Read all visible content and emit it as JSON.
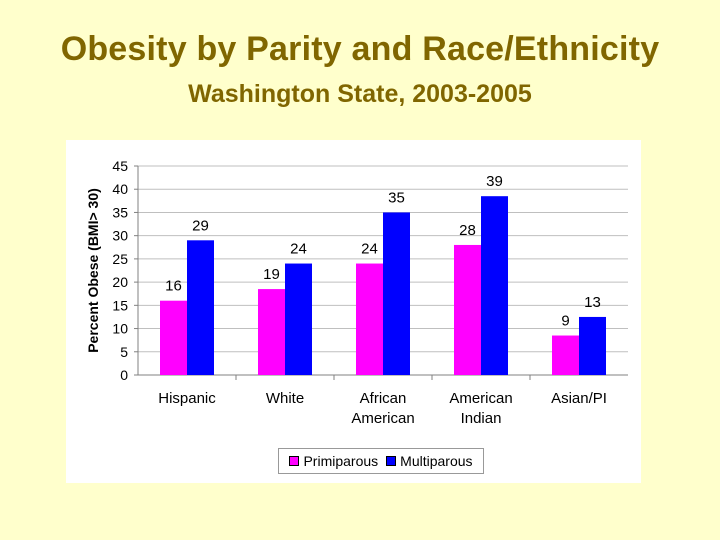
{
  "slide": {
    "title": "Obesity by Parity and Race/Ethnicity",
    "subtitle": "Washington State, 2003-2005"
  },
  "chart_data": {
    "type": "bar",
    "title": "",
    "xlabel": "",
    "ylabel": "Percent Obese (BMI> 30)",
    "ylim": [
      0,
      45
    ],
    "yticks": [
      0,
      5,
      10,
      15,
      20,
      25,
      30,
      35,
      40,
      45
    ],
    "grid": true,
    "legend_position": "bottom",
    "categories": [
      [
        "Hispanic"
      ],
      [
        "White"
      ],
      [
        "African",
        "American"
      ],
      [
        "American",
        "Indian"
      ],
      [
        "Asian/PI"
      ]
    ],
    "series": [
      {
        "name": "Primiparous",
        "color": "#FF00FF",
        "values": [
          16,
          18.5,
          24,
          28,
          8.5
        ],
        "labels": [
          "16",
          "19",
          "24",
          "28",
          "9"
        ]
      },
      {
        "name": "Multiparous",
        "color": "#0000FF",
        "values": [
          29,
          24,
          35,
          38.5,
          12.5
        ],
        "labels": [
          "29",
          "24",
          "35",
          "39",
          "13"
        ]
      }
    ]
  }
}
